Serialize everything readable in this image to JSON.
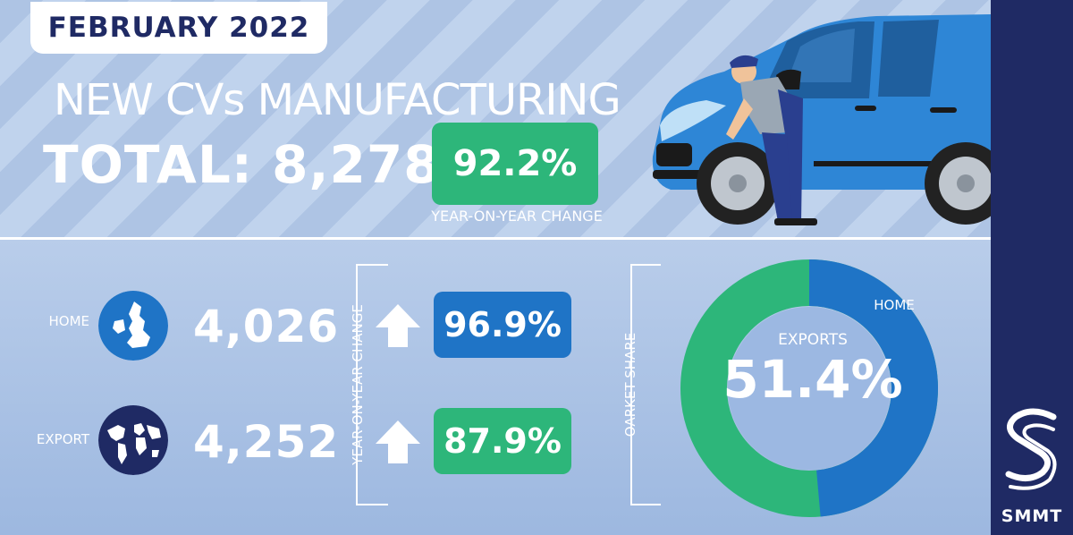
{
  "header": {
    "date": "FEBRUARY 2022",
    "title": "NEW CVs MANUFACTURING",
    "total": "TOTAL: 8,278",
    "yoy_total_pct": "92.2%",
    "yoy_caption": "YEAR-ON-YEAR CHANGE"
  },
  "breakdown": {
    "home": {
      "label": "HOME",
      "value": "4,026",
      "change": "96.9%"
    },
    "export": {
      "label": "EXPORT",
      "value": "4,252",
      "change": "87.9%"
    },
    "yoy_vertical_label": "YEAR-ON-YEAR CHANGE"
  },
  "market_share": {
    "vertical_label": "OARKET SHARE",
    "home_label": "HOME",
    "exports_label": "EXPORTS",
    "exports_pct_text": "51.4%",
    "exports_fraction": 0.514
  },
  "brand": {
    "name": "SMMT"
  },
  "colors": {
    "navy": "#1f2a64",
    "green": "#2db67a",
    "blue": "#1f74c6",
    "white": "#ffffff",
    "van_blue": "#2e86d6"
  },
  "icons": {
    "home_icon": "uk-map-icon",
    "export_icon": "globe-icon",
    "arrow_icon": "arrow-up-icon"
  }
}
